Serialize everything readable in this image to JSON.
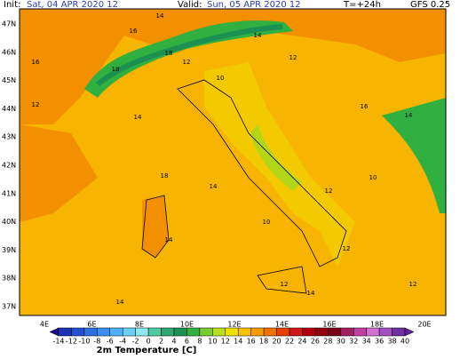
{
  "header": {
    "init_label": "Init:",
    "init_date": "Sat, 04 APR 2020 12",
    "valid_label": "Valid:",
    "valid_date": "Sun, 05 APR 2020 12",
    "lead": "T=+24h",
    "model": "GFS 0.25"
  },
  "map": {
    "latitudes": [
      "47N",
      "46N",
      "45N",
      "44N",
      "43N",
      "42N",
      "41N",
      "40N",
      "39N",
      "38N",
      "37N"
    ],
    "longitudes": [
      "4E",
      "6E",
      "8E",
      "10E",
      "12E",
      "14E",
      "16E",
      "18E",
      "20E"
    ],
    "point_values": [
      18,
      14,
      16,
      12,
      18,
      14,
      12,
      10,
      14,
      12,
      16,
      18,
      14,
      10,
      12,
      14,
      12,
      14,
      16,
      14,
      10,
      12,
      14,
      12
    ]
  },
  "colorbar": {
    "title": "2m Temperature [C]",
    "ticks": [
      -14,
      -12,
      -10,
      -8,
      -6,
      -4,
      -2,
      0,
      2,
      4,
      6,
      8,
      10,
      12,
      14,
      16,
      18,
      20,
      22,
      24,
      26,
      28,
      30,
      32,
      34,
      36,
      38,
      40
    ],
    "colors": [
      "#1a0a8c",
      "#1e2fb4",
      "#2450d0",
      "#2d6fe0",
      "#3a8ff0",
      "#4fb0f8",
      "#6dcff8",
      "#8ee8f0",
      "#50c8a0",
      "#2ea870",
      "#1c9050",
      "#30b040",
      "#78cc30",
      "#b8e020",
      "#f0e000",
      "#f8c000",
      "#f89a00",
      "#f07000",
      "#e84000",
      "#d01818",
      "#b00010",
      "#900010",
      "#780018",
      "#a02060",
      "#c040a0",
      "#d070d0",
      "#a050c0",
      "#7030a0",
      "#6020a0"
    ]
  }
}
